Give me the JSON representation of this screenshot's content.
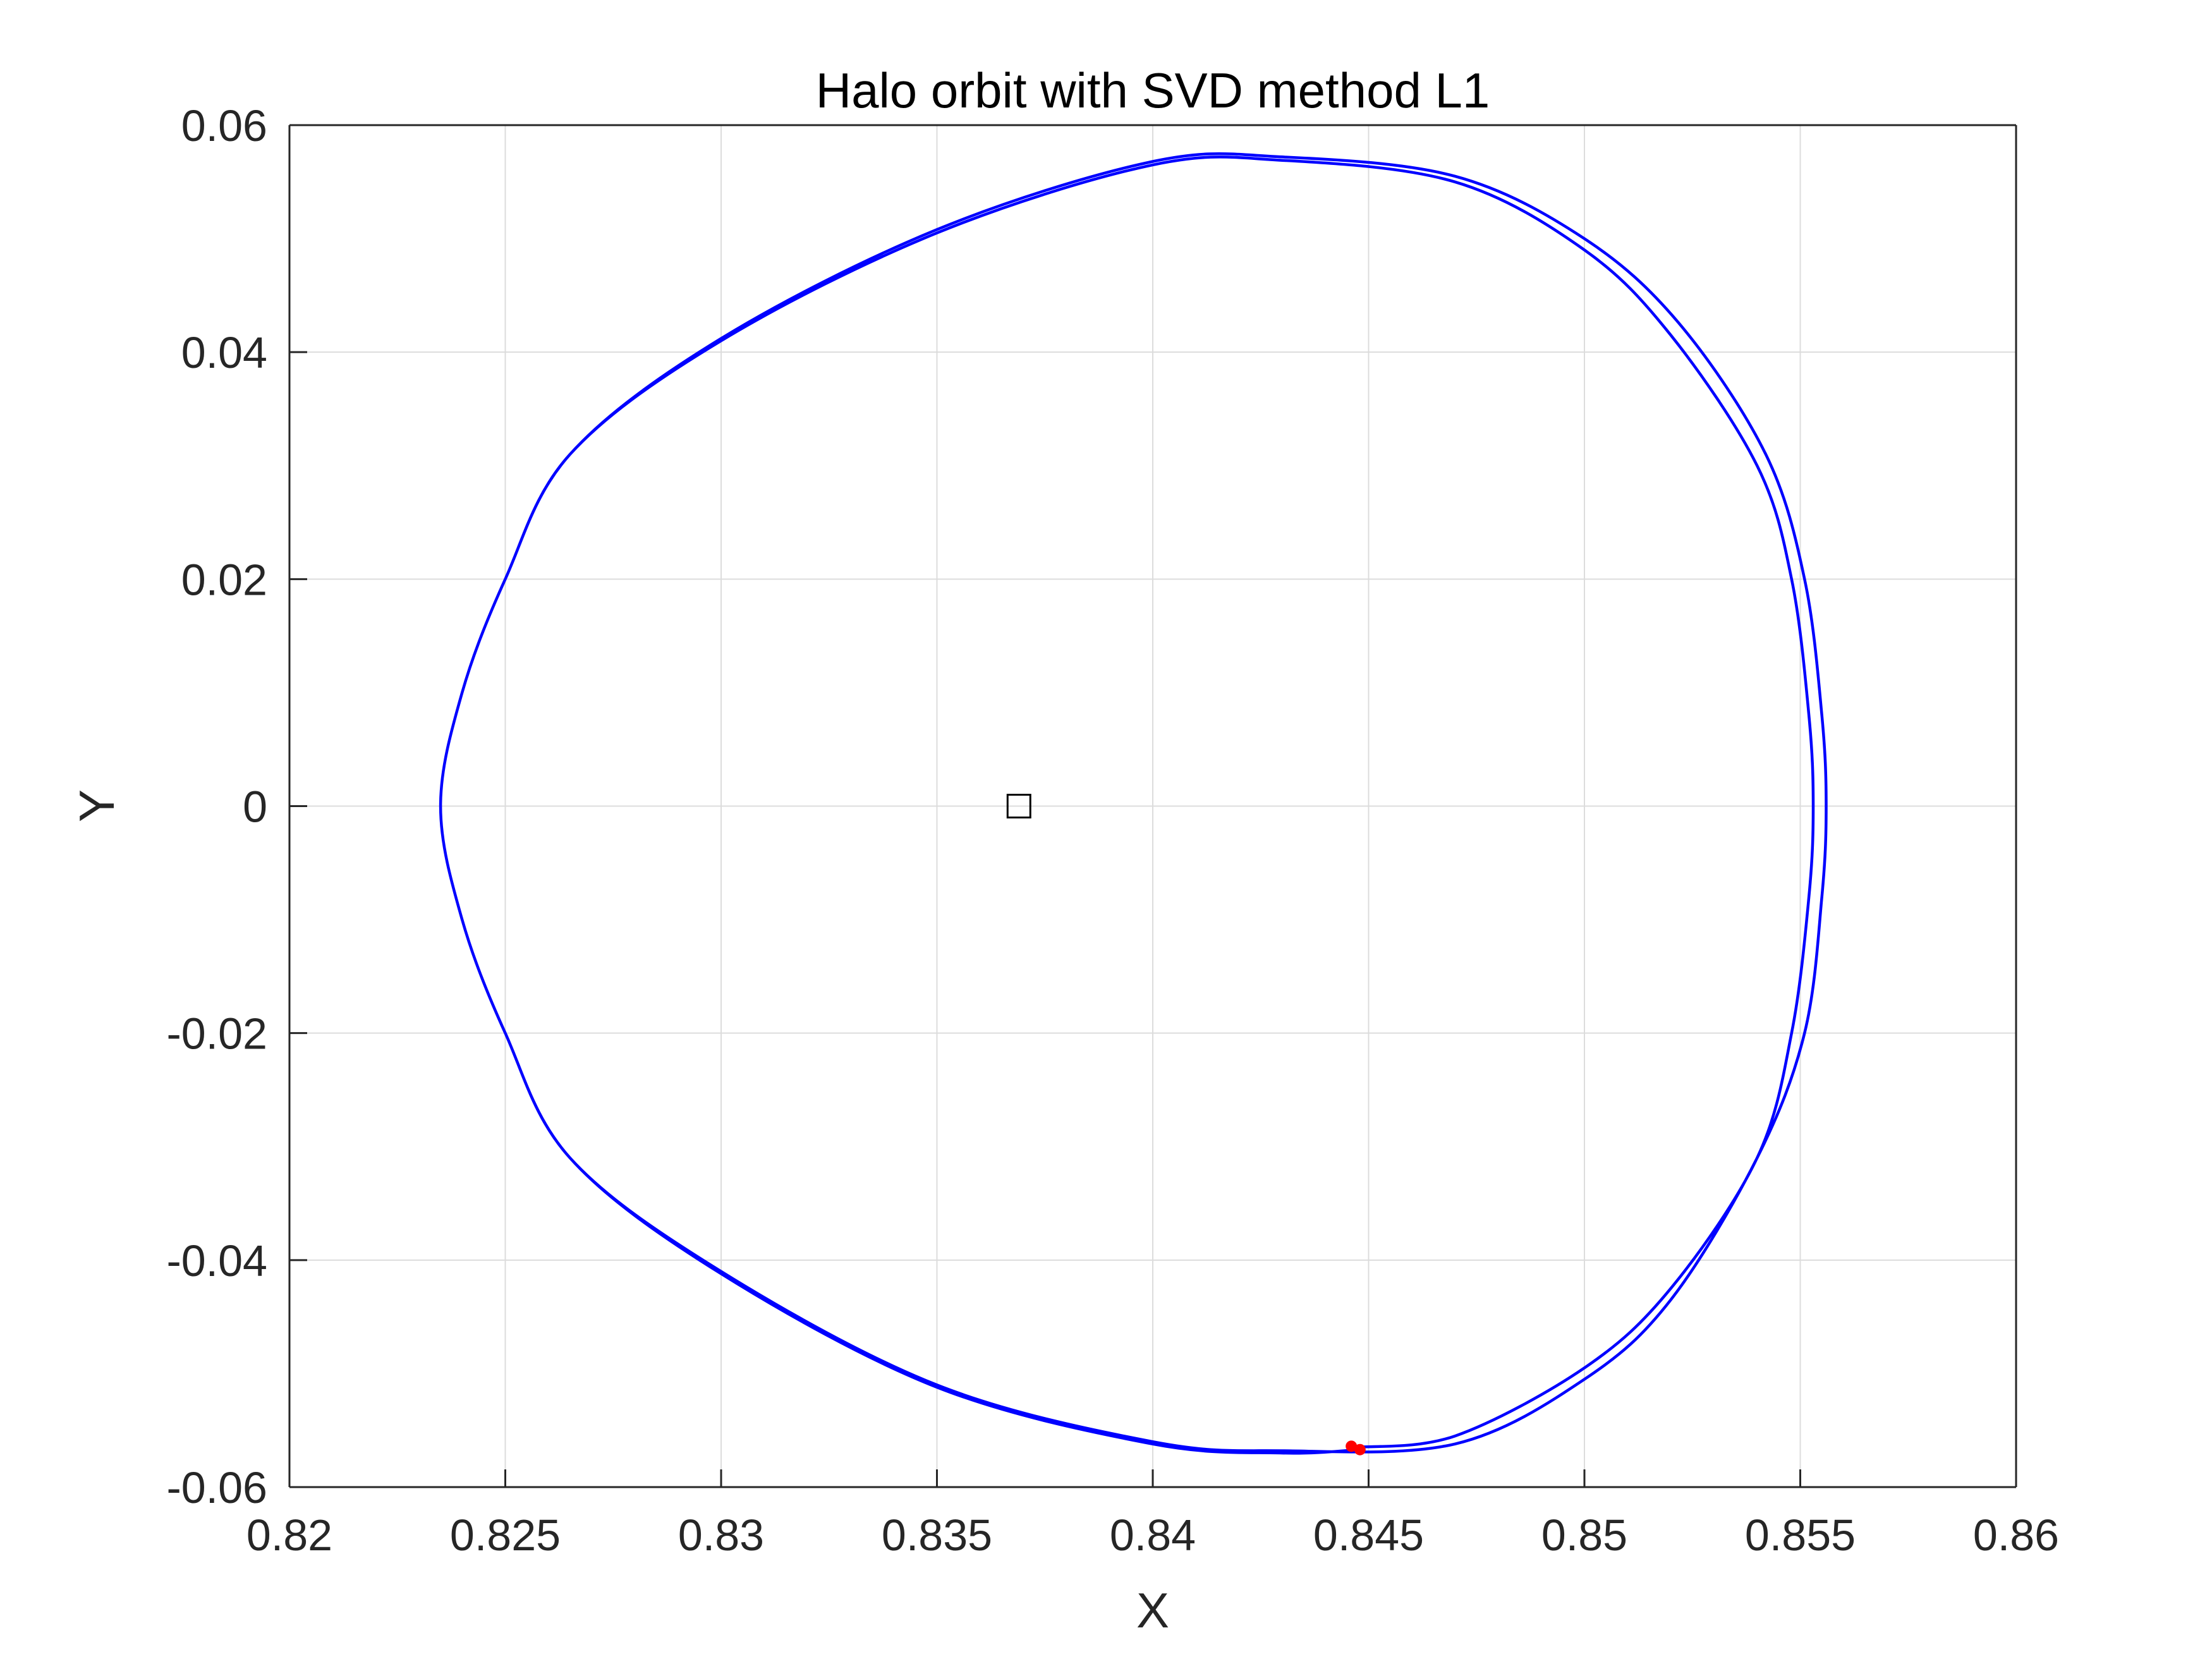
{
  "chart_data": {
    "type": "line",
    "title": "Halo orbit with SVD method L1",
    "xlabel": "X",
    "ylabel": "Y",
    "xlim": [
      0.82,
      0.86
    ],
    "ylim": [
      -0.06,
      0.06
    ],
    "grid": true,
    "x_ticks": [
      0.82,
      0.825,
      0.83,
      0.835,
      0.84,
      0.845,
      0.85,
      0.855,
      0.86
    ],
    "x_tick_labels": [
      "0.82",
      "0.825",
      "0.83",
      "0.835",
      "0.84",
      "0.845",
      "0.85",
      "0.855",
      "0.86"
    ],
    "y_ticks": [
      -0.06,
      -0.04,
      -0.02,
      0,
      0.02,
      0.04,
      0.06
    ],
    "y_tick_labels": [
      "-0.06",
      "-0.04",
      "-0.02",
      "0",
      "0.02",
      "0.04",
      "0.06"
    ],
    "series": [
      {
        "color": "#0000ff",
        "points": [
          [
            0.8447,
            -0.0565
          ],
          [
            0.847,
            -0.0555
          ],
          [
            0.85,
            -0.0495
          ],
          [
            0.852,
            -0.0425
          ],
          [
            0.854,
            -0.031
          ],
          [
            0.8548,
            -0.02
          ],
          [
            0.8552,
            -0.008
          ],
          [
            0.8553,
            0.0
          ],
          [
            0.8552,
            0.008
          ],
          [
            0.8548,
            0.02
          ],
          [
            0.854,
            0.03
          ],
          [
            0.852,
            0.0415
          ],
          [
            0.85,
            0.049
          ],
          [
            0.847,
            0.055
          ],
          [
            0.843,
            0.0569
          ],
          [
            0.84,
            0.0565
          ],
          [
            0.835,
            0.0505
          ],
          [
            0.83,
            0.041
          ],
          [
            0.8265,
            0.031
          ],
          [
            0.825,
            0.02
          ],
          [
            0.824,
            0.01
          ],
          [
            0.8235,
            0.0
          ],
          [
            0.824,
            -0.01
          ],
          [
            0.825,
            -0.02
          ],
          [
            0.8265,
            -0.031
          ],
          [
            0.83,
            -0.041
          ],
          [
            0.835,
            -0.051
          ],
          [
            0.84,
            -0.056
          ],
          [
            0.843,
            -0.0568
          ],
          [
            0.847,
            -0.0562
          ],
          [
            0.85,
            -0.0505
          ],
          [
            0.852,
            -0.0435
          ],
          [
            0.854,
            -0.031
          ],
          [
            0.8551,
            -0.02
          ],
          [
            0.8555,
            -0.008
          ],
          [
            0.8556,
            0.0
          ],
          [
            0.8555,
            0.008
          ],
          [
            0.8551,
            0.02
          ],
          [
            0.8542,
            0.031
          ],
          [
            0.8522,
            0.0425
          ],
          [
            0.85,
            0.05
          ],
          [
            0.847,
            0.0555
          ],
          [
            0.843,
            0.0572
          ],
          [
            0.84,
            0.0568
          ],
          [
            0.835,
            0.0508
          ],
          [
            0.83,
            0.0412
          ],
          [
            0.8265,
            0.031
          ],
          [
            0.825,
            0.02
          ],
          [
            0.824,
            0.01
          ],
          [
            0.8235,
            0.0
          ],
          [
            0.824,
            -0.01
          ],
          [
            0.825,
            -0.02
          ],
          [
            0.8265,
            -0.031
          ],
          [
            0.83,
            -0.0412
          ],
          [
            0.835,
            -0.0512
          ],
          [
            0.84,
            -0.0562
          ],
          [
            0.843,
            -0.057
          ],
          [
            0.8448,
            -0.0567
          ]
        ]
      }
    ],
    "markers": [
      {
        "name": "L1 point",
        "shape": "square",
        "color": "#000000",
        "x": 0.8369,
        "y": 0.0
      },
      {
        "name": "start point",
        "shape": "dot",
        "color": "#ff0000",
        "x": 0.8446,
        "y": -0.0564
      },
      {
        "name": "end point",
        "shape": "dot",
        "color": "#ff0000",
        "x": 0.8448,
        "y": -0.0567
      }
    ]
  }
}
